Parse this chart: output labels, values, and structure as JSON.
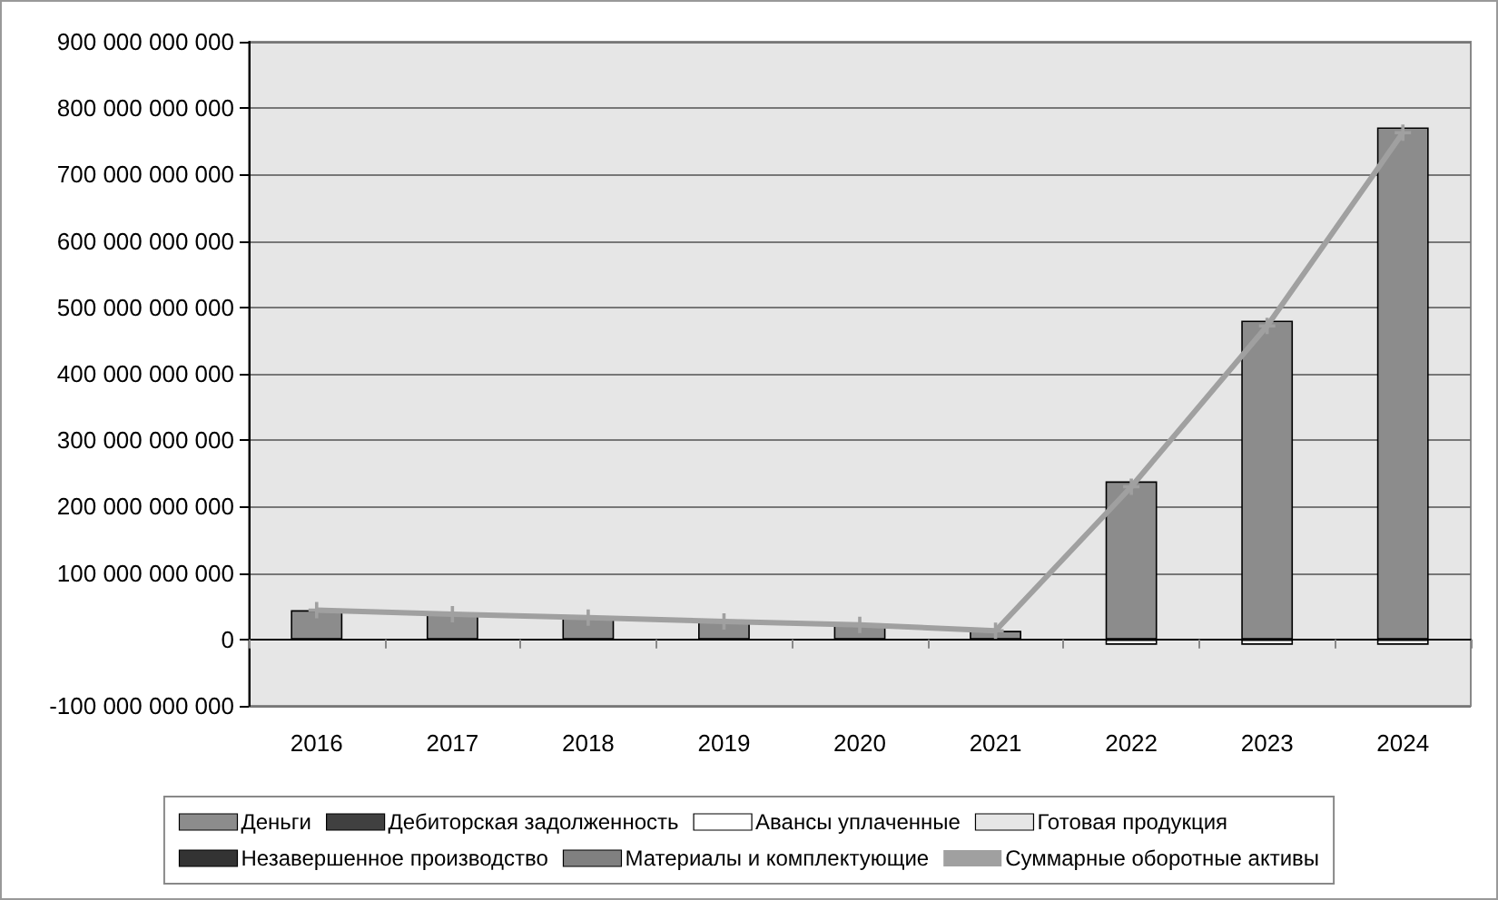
{
  "chart_data": {
    "type": "bar",
    "stacked": true,
    "categories": [
      "2016",
      "2017",
      "2018",
      "2019",
      "2020",
      "2021",
      "2022",
      "2023",
      "2024"
    ],
    "series": [
      {
        "name": "Деньги",
        "color": "#8c8c8c",
        "values": [
          44000000000,
          38000000000,
          33000000000,
          27000000000,
          22000000000,
          13000000000,
          238000000000,
          480000000000,
          771000000000
        ]
      },
      {
        "name": "Дебиторская задолженность",
        "color": "#404040",
        "values": [
          null,
          null,
          null,
          null,
          null,
          null,
          null,
          null,
          null
        ]
      },
      {
        "name": "Авансы уплаченные",
        "color": "#ffffff",
        "values": [
          null,
          null,
          null,
          null,
          null,
          null,
          -8000000000,
          -8000000000,
          -8000000000
        ]
      },
      {
        "name": "Готовая продукция",
        "color": "#e6e6e6",
        "values": [
          null,
          null,
          null,
          null,
          null,
          null,
          null,
          null,
          null
        ]
      },
      {
        "name": "Незавершенное производство",
        "color": "#333333",
        "values": [
          null,
          null,
          null,
          null,
          null,
          null,
          null,
          null,
          null
        ]
      },
      {
        "name": "Материалы и комплектующие",
        "color": "#808080",
        "values": [
          null,
          null,
          null,
          null,
          null,
          null,
          null,
          null,
          null
        ]
      },
      {
        "name": "Суммарные оборотные активы",
        "type": "line",
        "marker": "cross",
        "color": "#a0a0a0",
        "values": [
          44000000000,
          38000000000,
          33000000000,
          27000000000,
          22000000000,
          13000000000,
          230000000000,
          472000000000,
          763000000000
        ]
      }
    ],
    "ylim": [
      -100000000000,
      900000000000
    ],
    "yticks": [
      {
        "value": -100000000000,
        "label": "-100 000 000 000"
      },
      {
        "value": 0,
        "label": "0"
      },
      {
        "value": 100000000000,
        "label": "100 000 000 000"
      },
      {
        "value": 200000000000,
        "label": "200 000 000 000"
      },
      {
        "value": 300000000000,
        "label": "300 000 000 000"
      },
      {
        "value": 400000000000,
        "label": "400 000 000 000"
      },
      {
        "value": 500000000000,
        "label": "500 000 000 000"
      },
      {
        "value": 600000000000,
        "label": "600 000 000 000"
      },
      {
        "value": 700000000000,
        "label": "700 000 000 000"
      },
      {
        "value": 800000000000,
        "label": "800 000 000 000"
      },
      {
        "value": 900000000000,
        "label": "900 000 000 000"
      }
    ],
    "grid": "y",
    "legend": "bottom"
  }
}
